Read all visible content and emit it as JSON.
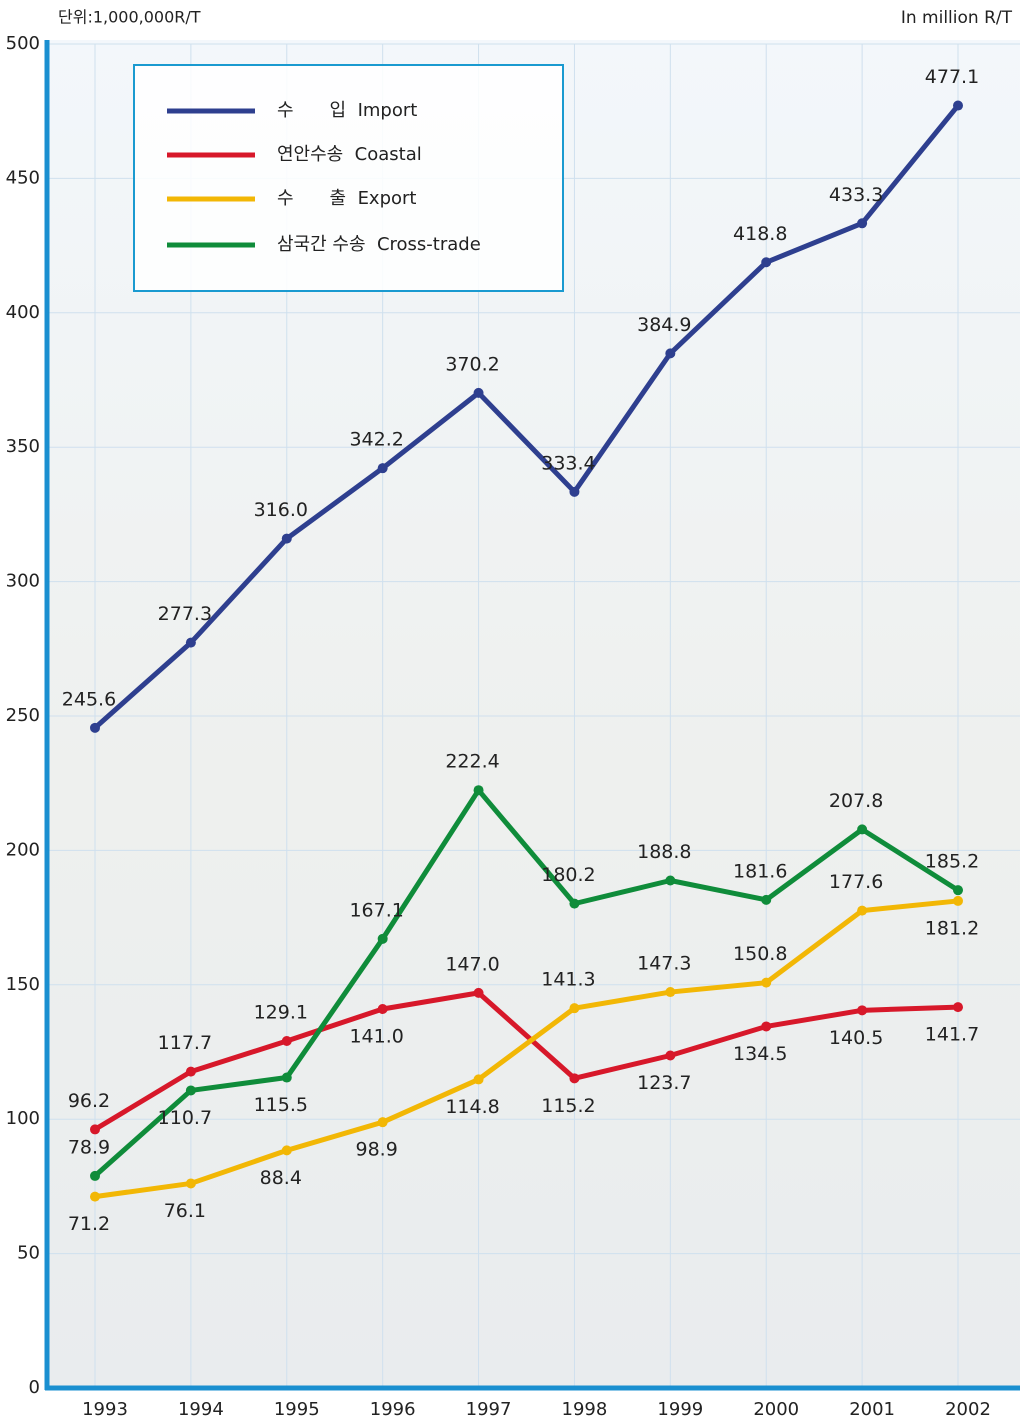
{
  "chart_data": {
    "type": "line",
    "unit_label": "단위:1,000,000R/T",
    "unit_label_en": "In million R/T",
    "categories": [
      "1993",
      "1994",
      "1995",
      "1996",
      "1997",
      "1998",
      "1999",
      "2000",
      "2001",
      "2002"
    ],
    "series": [
      {
        "name": "수　　입  Import",
        "color": "#2e3f8f",
        "values": [
          245.6,
          277.3,
          316.0,
          342.2,
          370.2,
          333.4,
          384.9,
          418.8,
          433.3,
          477.1
        ],
        "value_labels": [
          "245.6",
          "277.3",
          "316.0",
          "342.2",
          "370.2",
          "333.4",
          "384.9",
          "418.8",
          "433.3",
          "477.1"
        ]
      },
      {
        "name": "연안수송  Coastal",
        "color": "#d7182a",
        "values": [
          96.2,
          117.7,
          129.1,
          141.0,
          147.0,
          115.2,
          123.7,
          134.5,
          140.5,
          141.7
        ],
        "value_labels": [
          "96.2",
          "117.7",
          "129.1",
          "141.0",
          "147.0",
          "115.2",
          "123.7",
          "134.5",
          "140.5",
          "141.7"
        ]
      },
      {
        "name": "수　　출  Export",
        "color": "#f2b705",
        "values": [
          71.2,
          76.1,
          88.4,
          98.9,
          114.8,
          141.3,
          147.3,
          150.8,
          177.6,
          181.2
        ],
        "value_labels": [
          "71.2",
          "76.1",
          "88.4",
          "98.9",
          "114.8",
          "141.3",
          "147.3",
          "150.8",
          "177.6",
          "181.2"
        ]
      },
      {
        "name": "삼국간 수송  Cross-trade",
        "color": "#0f8c3a",
        "values": [
          78.9,
          110.7,
          115.5,
          167.1,
          222.4,
          180.2,
          188.8,
          181.6,
          207.8,
          185.2
        ],
        "value_labels": [
          "78.9",
          "110.7",
          "115.5",
          "167.1",
          "222.4",
          "180.2",
          "188.8",
          "181.6",
          "207.8",
          "185.2"
        ]
      }
    ],
    "ylim": [
      0,
      500
    ],
    "yticks": [
      0,
      50,
      100,
      150,
      200,
      250,
      300,
      350,
      400,
      450,
      500
    ],
    "grid": true,
    "legend": "top-left"
  }
}
